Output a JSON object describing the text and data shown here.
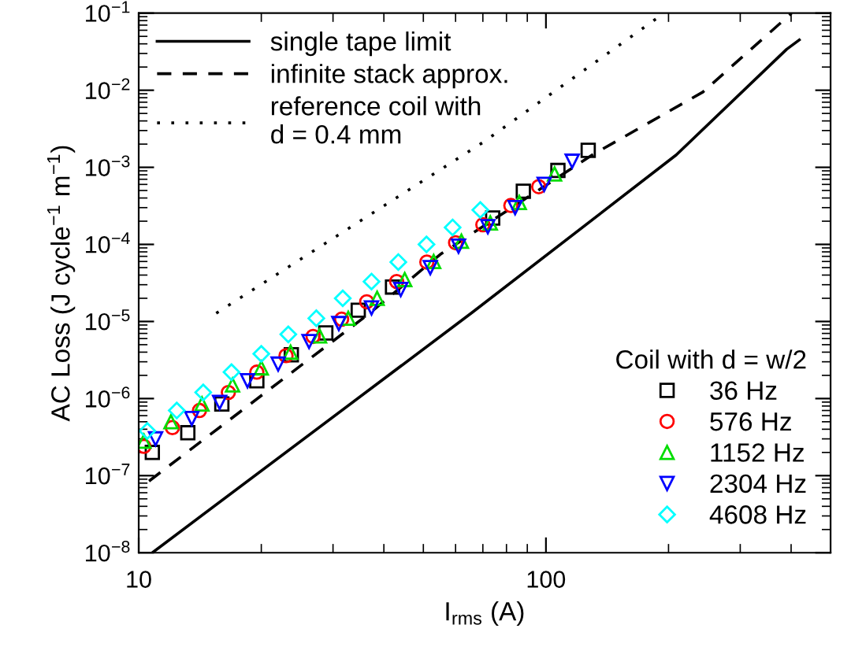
{
  "chart_data": {
    "type": "line",
    "xlabel": "I$_{rms}$ (A)",
    "ylabel": "AC Loss (J cycle$^{−1}$ m$^{−1}$)",
    "log": "xy",
    "xlim": [
      10,
      500
    ],
    "ylim": [
      1e-08,
      0.1
    ],
    "xticks": [
      10,
      100
    ],
    "yticks": [
      {
        "value": 1e-08,
        "label": "10$^{−8}$"
      },
      {
        "value": 1e-07,
        "label": "10$^{−7}$"
      },
      {
        "value": 1e-06,
        "label": "10$^{−6}$"
      },
      {
        "value": 1e-05,
        "label": "10$^{−5}$"
      },
      {
        "value": 0.0001,
        "label": "10$^{−4}$"
      },
      {
        "value": 0.001,
        "label": "10$^{−3}$"
      },
      {
        "value": 0.01,
        "label": "10$^{−2}$"
      },
      {
        "value": 0.1,
        "label": "10$^{−1}$"
      }
    ],
    "legend": "top left",
    "legend_title": "Coil with d = w/2",
    "grid": false,
    "series": [
      {
        "name": "single tape limit",
        "line_style": "solid",
        "color": "#000000",
        "x": [
          10.8,
          65.8,
          209,
          390,
          419
        ],
        "values": [
          1e-08,
          1.3e-05,
          0.00145,
          0.034,
          0.045
        ]
      },
      {
        "name": "infinite stack approx.",
        "line_style": "dashed",
        "color": "#000000",
        "x": [
          10.6,
          36.9,
          55,
          130,
          243,
          401
        ],
        "values": [
          8.5e-08,
          1.28e-05,
          7.4e-05,
          0.00145,
          0.0095,
          0.1
        ]
      },
      {
        "name": "reference coil with\nd = 0.4 mm",
        "line_style": "dotted",
        "color": "#000000",
        "x": [
          15.5,
          70,
          195
        ],
        "values": [
          1.28e-05,
          0.0021,
          0.1
        ]
      },
      {
        "name": "36 Hz",
        "type": "scatter",
        "marker": "square",
        "color": "#000000",
        "x": [
          10.8,
          13.2,
          16.0,
          19.5,
          23.7,
          28.8,
          34.6,
          42,
          51,
          61,
          74,
          88,
          107,
          127
        ],
        "values": [
          2e-07,
          3.6e-07,
          8.5e-07,
          1.7e-06,
          3.7e-06,
          7.1e-06,
          1.4e-05,
          2.8e-05,
          null,
          null,
          0.00022,
          0.00049,
          0.00091,
          0.00166
        ]
      },
      {
        "name": "576 Hz",
        "type": "scatter",
        "marker": "circle",
        "color": "#ff0000",
        "x": [
          10.3,
          12.1,
          14.1,
          16.6,
          19.5,
          23,
          26.8,
          31.5,
          36.3,
          43,
          51,
          60,
          70,
          82,
          96
        ],
        "values": [
          2.4e-07,
          4.2e-07,
          7e-07,
          1.2e-06,
          2.2e-06,
          3.6e-06,
          6.4e-06,
          1.07e-05,
          1.8e-05,
          3.3e-05,
          5.9e-05,
          0.000105,
          0.00018,
          0.00032,
          0.00056
        ]
      },
      {
        "name": "1152 Hz",
        "type": "scatter",
        "marker": "triangle",
        "color": "#00dd00",
        "x": [
          10.3,
          12.0,
          14.3,
          17,
          20,
          23.6,
          27.8,
          32.7,
          38.5,
          45,
          53,
          62,
          73,
          86,
          105
        ],
        "values": [
          2.8e-07,
          5e-07,
          8.5e-07,
          1.5e-06,
          2.5e-06,
          4e-06,
          6.5e-06,
          1.1e-05,
          2e-05,
          3.5e-05,
          6e-05,
          0.00011,
          0.00019,
          0.00035,
          0.00082
        ]
      },
      {
        "name": "2304 Hz",
        "type": "scatter",
        "marker": "triangle_down",
        "color": "#0000ff",
        "x": [
          11,
          13.5,
          15.8,
          18.5,
          22,
          26.2,
          31,
          37.3,
          44,
          52,
          61,
          72,
          84,
          99,
          116
        ],
        "values": [
          3e-07,
          5.5e-07,
          8.9e-07,
          1.7e-06,
          2.8e-06,
          5.5e-06,
          9.4e-06,
          1.5e-05,
          2.6e-05,
          5e-05,
          9.5e-05,
          0.00017,
          0.0003,
          0.0006,
          0.0012
        ]
      },
      {
        "name": "4608 Hz",
        "type": "scatter",
        "marker": "diamond",
        "color": "#00ffff",
        "x": [
          10.5,
          12.4,
          14.4,
          16.9,
          20,
          23.3,
          27.3,
          31.7,
          37.3,
          43.4,
          50.9,
          59,
          69
        ],
        "values": [
          3.8e-07,
          7e-07,
          1.2e-06,
          2.2e-06,
          3.8e-06,
          6.8e-06,
          1.1e-05,
          2e-05,
          3.3e-05,
          5.9e-05,
          0.0001,
          0.000166,
          0.00028
        ]
      }
    ]
  }
}
